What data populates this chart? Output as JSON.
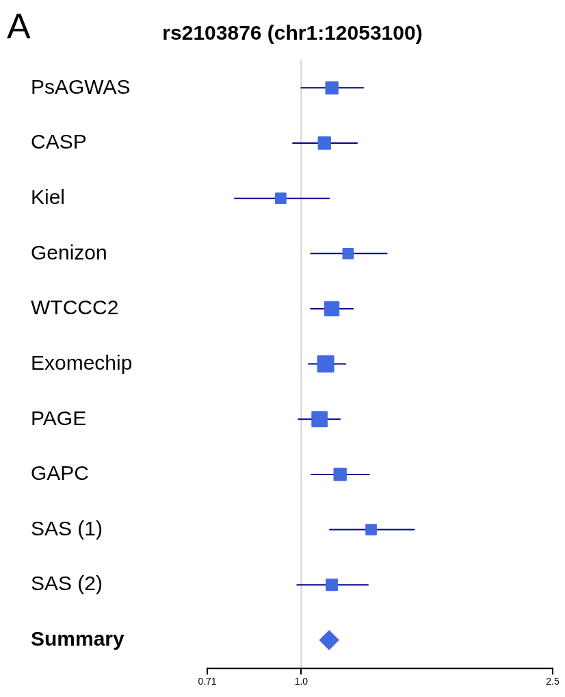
{
  "chart_data": {
    "type": "bubble",
    "title": "rs2103876 (chr1:12053100)",
    "orientation": "horizontal",
    "log": "x",
    "categories": [
      "PsAGWAS",
      "CASP",
      "Kiel",
      "Genizon",
      "WTCCC2",
      "Exomechip",
      "PAGE",
      "GAPC",
      "SAS (1)",
      "SAS (2)",
      "Summary"
    ],
    "series": [
      {
        "color": "#4169e1",
        "marker": "square",
        "values": [
          1.118,
          1.088,
          0.928,
          1.186,
          1.118,
          1.093,
          1.069,
          1.152,
          1.29,
          1.118,
          null
        ],
        "sizes": [
          0.58,
          0.58,
          0.42,
          0.42,
          0.78,
          1,
          0.89,
          0.58,
          0.42,
          0.5,
          null
        ],
        "errors": [
          [
            0.998,
            1.256
          ],
          [
            0.968,
            1.228
          ],
          [
            0.783,
            1.109
          ],
          [
            1.033,
            1.369
          ],
          [
            1.033,
            1.21
          ],
          [
            1.025,
            1.178
          ],
          [
            0.988,
            1.154
          ],
          [
            1.035,
            1.284
          ],
          [
            1.107,
            1.512
          ],
          [
            0.983,
            1.278
          ],
          null
        ]
      },
      {
        "color": "#4169e1",
        "marker": "diamond",
        "values": [
          null,
          null,
          null,
          null,
          null,
          null,
          null,
          null,
          null,
          null,
          1.107
        ],
        "sizes": [
          null,
          null,
          null,
          null,
          null,
          null,
          null,
          null,
          null,
          null,
          0.7
        ]
      }
    ],
    "xlim": [
      0.71,
      2.5
    ],
    "xticks": [
      0.71,
      {
        "value": 1,
        "label": "1.0"
      },
      2.5
    ],
    "tick_labels": "x",
    "ref_lines": [
      {
        "axis": "x",
        "value": 1,
        "color": "#d3d3d3"
      }
    ],
    "grid": false,
    "legend": false,
    "annotations": [
      "A"
    ]
  }
}
